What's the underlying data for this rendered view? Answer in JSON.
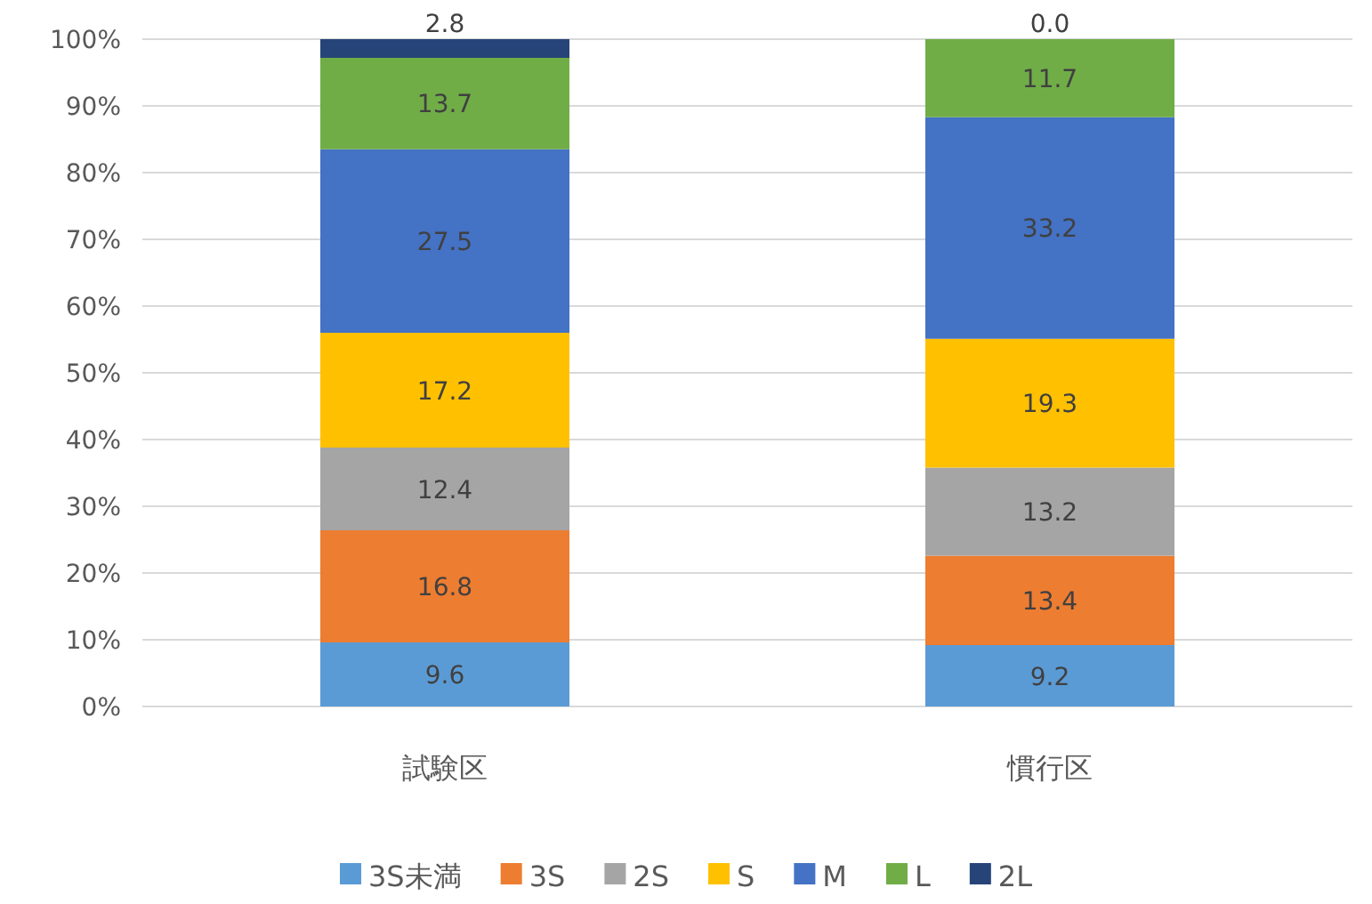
{
  "chart_data": {
    "type": "bar",
    "stacked": true,
    "categories": [
      "試験区",
      "慣行区"
    ],
    "series": [
      {
        "name": "3S未満",
        "color": "#5b9bd5",
        "values": [
          9.6,
          9.2
        ],
        "value_labels": [
          "9.6",
          "9.2"
        ]
      },
      {
        "name": "3S",
        "color": "#ed7d31",
        "values": [
          16.8,
          13.4
        ],
        "value_labels": [
          "16.8",
          "13.4"
        ]
      },
      {
        "name": "2S",
        "color": "#a5a5a5",
        "values": [
          12.4,
          13.2
        ],
        "value_labels": [
          "12.4",
          "13.2"
        ]
      },
      {
        "name": "S",
        "color": "#ffc000",
        "values": [
          17.2,
          19.3
        ],
        "value_labels": [
          "17.2",
          "19.3"
        ]
      },
      {
        "name": "M",
        "color": "#4472c4",
        "values": [
          27.5,
          33.2
        ],
        "value_labels": [
          "27.5",
          "33.2"
        ]
      },
      {
        "name": "L",
        "color": "#70ad47",
        "values": [
          13.7,
          11.7
        ],
        "value_labels": [
          "13.7",
          "11.7"
        ]
      },
      {
        "name": "2L",
        "color": "#264478",
        "values": [
          2.8,
          0.0
        ],
        "value_labels": [
          "2.8",
          "0.0"
        ]
      }
    ],
    "ylim": [
      0,
      100
    ],
    "yticks": [
      {
        "value": 0,
        "label": "0%"
      },
      {
        "value": 10,
        "label": "10%"
      },
      {
        "value": 20,
        "label": "20%"
      },
      {
        "value": 30,
        "label": "30%"
      },
      {
        "value": 40,
        "label": "40%"
      },
      {
        "value": 50,
        "label": "50%"
      },
      {
        "value": 60,
        "label": "60%"
      },
      {
        "value": 70,
        "label": "70%"
      },
      {
        "value": 80,
        "label": "80%"
      },
      {
        "value": 90,
        "label": "90%"
      },
      {
        "value": 100,
        "label": "100%"
      }
    ],
    "grid": "y",
    "legend": "bottom"
  }
}
